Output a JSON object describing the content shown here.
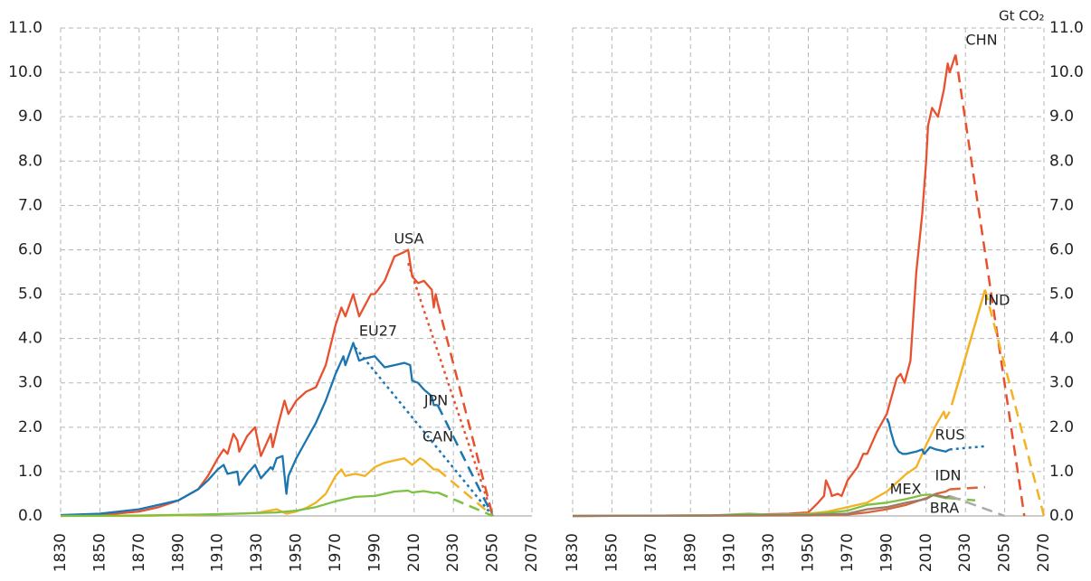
{
  "chart_data": [
    {
      "type": "line",
      "xlim": [
        1830,
        2070
      ],
      "xticks": [
        1830,
        1850,
        1870,
        1890,
        1910,
        1930,
        1950,
        1970,
        1990,
        2010,
        2030,
        2050,
        2070
      ],
      "ylim": [
        0,
        11
      ],
      "yticks": [
        {
          "value": 0,
          "label": "0.0"
        },
        {
          "value": 1,
          "label": "1.0"
        },
        {
          "value": 2,
          "label": "2.0"
        },
        {
          "value": 3,
          "label": "3.0"
        },
        {
          "value": 4,
          "label": "4.0"
        },
        {
          "value": 5,
          "label": "5.0"
        },
        {
          "value": 6,
          "label": "6.0"
        },
        {
          "value": 7,
          "label": "7.0"
        },
        {
          "value": 8,
          "label": "8.0"
        },
        {
          "value": 9,
          "label": "9.0"
        },
        {
          "value": 10,
          "label": "10.0"
        },
        {
          "value": 11,
          "label": "11.0"
        }
      ],
      "grid": true,
      "y_axis_side": "left",
      "series": [
        {
          "name": "USA",
          "color": "#e8512f",
          "x": [
            1830,
            1850,
            1870,
            1880,
            1890,
            1900,
            1905,
            1910,
            1913,
            1915,
            1918,
            1920,
            1921,
            1925,
            1929,
            1932,
            1937,
            1938,
            1941,
            1944,
            1946,
            1950,
            1955,
            1960,
            1965,
            1970,
            1973,
            1975,
            1979,
            1982,
            1985,
            1988,
            1990,
            1995,
            2000,
            2005,
            2007,
            2009,
            2012,
            2015,
            2019,
            2020,
            2021,
            2022
          ],
          "values": [
            0.0,
            0.02,
            0.1,
            0.2,
            0.35,
            0.6,
            0.9,
            1.3,
            1.5,
            1.4,
            1.85,
            1.7,
            1.45,
            1.8,
            2.0,
            1.35,
            1.85,
            1.55,
            2.1,
            2.6,
            2.3,
            2.6,
            2.8,
            2.9,
            3.4,
            4.3,
            4.7,
            4.5,
            5.0,
            4.5,
            4.75,
            5.0,
            5.0,
            5.3,
            5.85,
            5.95,
            6.0,
            5.4,
            5.25,
            5.3,
            5.1,
            4.7,
            5.0,
            4.8
          ],
          "projections": [
            {
              "style": "dashed",
              "color": "#e8512f",
              "x": [
                2022,
                2050
              ],
              "values": [
                4.8,
                0
              ]
            },
            {
              "style": "dotted",
              "color": "#e8512f",
              "x": [
                2007,
                2050
              ],
              "values": [
                5.7,
                0
              ]
            }
          ]
        },
        {
          "name": "EU27",
          "color": "#1a75b0",
          "x": [
            1830,
            1850,
            1870,
            1890,
            1900,
            1905,
            1910,
            1913,
            1915,
            1920,
            1921,
            1925,
            1929,
            1932,
            1937,
            1938,
            1940,
            1943,
            1945,
            1946,
            1950,
            1955,
            1960,
            1965,
            1970,
            1974,
            1975,
            1979,
            1982,
            1985,
            1990,
            1995,
            2000,
            2005,
            2008,
            2009,
            2012,
            2015,
            2019,
            2020,
            2022
          ],
          "values": [
            0.02,
            0.05,
            0.15,
            0.35,
            0.6,
            0.8,
            1.05,
            1.15,
            0.95,
            1.0,
            0.7,
            0.95,
            1.15,
            0.85,
            1.1,
            1.05,
            1.3,
            1.35,
            0.5,
            0.9,
            1.3,
            1.7,
            2.1,
            2.6,
            3.2,
            3.6,
            3.4,
            3.9,
            3.5,
            3.55,
            3.6,
            3.35,
            3.4,
            3.45,
            3.4,
            3.05,
            3.0,
            2.85,
            2.7,
            2.5,
            2.5
          ],
          "projections": [
            {
              "style": "dotted",
              "color": "#1a75b0",
              "x": [
                1980,
                2050
              ],
              "values": [
                3.8,
                0
              ]
            },
            {
              "style": "dashed",
              "color": "#1a75b0",
              "x": [
                2022,
                2050
              ],
              "values": [
                2.5,
                0
              ]
            }
          ]
        },
        {
          "name": "JPN",
          "color": "#f4b223",
          "x": [
            1830,
            1870,
            1900,
            1920,
            1930,
            1940,
            1945,
            1950,
            1955,
            1960,
            1965,
            1970,
            1973,
            1975,
            1980,
            1985,
            1990,
            1995,
            2000,
            2005,
            2009,
            2013,
            2015,
            2020,
            2022
          ],
          "values": [
            0,
            0,
            0.02,
            0.05,
            0.07,
            0.15,
            0.05,
            0.1,
            0.18,
            0.3,
            0.5,
            0.9,
            1.05,
            0.9,
            0.95,
            0.9,
            1.1,
            1.2,
            1.25,
            1.3,
            1.15,
            1.3,
            1.25,
            1.05,
            1.05
          ],
          "projections": [
            {
              "style": "dashed",
              "color": "#f4b223",
              "x": [
                2022,
                2050
              ],
              "values": [
                1.05,
                0
              ]
            }
          ]
        },
        {
          "name": "CAN",
          "color": "#7dc142",
          "x": [
            1830,
            1870,
            1900,
            1920,
            1940,
            1950,
            1960,
            1970,
            1980,
            1990,
            2000,
            2007,
            2009,
            2015,
            2020,
            2022
          ],
          "values": [
            0,
            0.01,
            0.03,
            0.05,
            0.08,
            0.12,
            0.2,
            0.33,
            0.43,
            0.45,
            0.55,
            0.57,
            0.53,
            0.56,
            0.52,
            0.53
          ],
          "projections": [
            {
              "style": "dashed",
              "color": "#7dc142",
              "x": [
                2022,
                2050
              ],
              "values": [
                0.53,
                0
              ]
            }
          ]
        }
      ]
    },
    {
      "type": "line",
      "unit": "Gt CO₂",
      "xlim": [
        1830,
        2070
      ],
      "xticks": [
        1830,
        1850,
        1870,
        1890,
        1910,
        1930,
        1950,
        1970,
        1990,
        2010,
        2030,
        2050,
        2070
      ],
      "ylim": [
        0,
        11
      ],
      "yticks": [
        {
          "value": 0,
          "label": "0.0"
        },
        {
          "value": 1,
          "label": "1.0"
        },
        {
          "value": 2,
          "label": "2.0"
        },
        {
          "value": 3,
          "label": "3.0"
        },
        {
          "value": 4,
          "label": "4.0"
        },
        {
          "value": 5,
          "label": "5.0"
        },
        {
          "value": 6,
          "label": "6.0"
        },
        {
          "value": 7,
          "label": "7.0"
        },
        {
          "value": 8,
          "label": "8.0"
        },
        {
          "value": 9,
          "label": "9.0"
        },
        {
          "value": 10,
          "label": "10.0"
        },
        {
          "value": 11,
          "label": "11.0"
        }
      ],
      "grid": true,
      "y_axis_side": "right",
      "series": [
        {
          "name": "CHN",
          "color": "#e8512f",
          "x": [
            1830,
            1900,
            1940,
            1950,
            1955,
            1958,
            1959,
            1961,
            1962,
            1965,
            1967,
            1970,
            1975,
            1978,
            1980,
            1985,
            1990,
            1995,
            1997,
            1999,
            2002,
            2005,
            2008,
            2010,
            2011,
            2013,
            2016,
            2019,
            2021,
            2022,
            2025
          ],
          "values": [
            0.0,
            0.01,
            0.05,
            0.08,
            0.3,
            0.45,
            0.8,
            0.6,
            0.45,
            0.5,
            0.45,
            0.8,
            1.1,
            1.4,
            1.4,
            1.9,
            2.3,
            3.1,
            3.2,
            3.0,
            3.5,
            5.5,
            6.8,
            8.0,
            8.8,
            9.2,
            9.0,
            9.6,
            10.2,
            10.0,
            10.4
          ],
          "projections": [
            {
              "style": "dashed",
              "color": "#e8512f",
              "x": [
                2025,
                2060
              ],
              "values": [
                10.4,
                0
              ]
            }
          ]
        },
        {
          "name": "IND",
          "color": "#f4b223",
          "x": [
            1830,
            1900,
            1940,
            1950,
            1960,
            1970,
            1980,
            1990,
            2000,
            2005,
            2010,
            2015,
            2019,
            2020,
            2022
          ],
          "values": [
            0,
            0.01,
            0.03,
            0.05,
            0.1,
            0.2,
            0.3,
            0.55,
            0.95,
            1.1,
            1.6,
            2.05,
            2.35,
            2.2,
            2.35
          ],
          "projections": [
            {
              "style": "solid",
              "color": "#f4b223",
              "x": [
                2023,
                2040
              ],
              "values": [
                2.5,
                5.1
              ]
            },
            {
              "style": "dashed",
              "color": "#f4b223",
              "x": [
                2040,
                2070
              ],
              "values": [
                5.1,
                0
              ]
            }
          ]
        },
        {
          "name": "RUS",
          "color": "#1a75b0",
          "x": [
            1990,
            1991,
            1992,
            1994,
            1996,
            1998,
            2000,
            2005,
            2008,
            2009,
            2012,
            2015,
            2020,
            2022
          ],
          "values": [
            2.2,
            2.1,
            1.9,
            1.6,
            1.45,
            1.4,
            1.4,
            1.45,
            1.5,
            1.4,
            1.55,
            1.5,
            1.45,
            1.5
          ],
          "projections": [
            {
              "style": "dotted",
              "color": "#1a75b0",
              "x": [
                2022,
                2040
              ],
              "values": [
                1.5,
                1.57
              ]
            }
          ]
        },
        {
          "name": "IDN",
          "color": "#d9663b",
          "x": [
            1830,
            1950,
            1970,
            1980,
            1990,
            2000,
            2010,
            2015,
            2020,
            2022
          ],
          "values": [
            0,
            0.01,
            0.03,
            0.08,
            0.15,
            0.25,
            0.4,
            0.5,
            0.55,
            0.6
          ],
          "projections": [
            {
              "style": "dashed",
              "color": "#d9663b",
              "x": [
                2022,
                2040
              ],
              "values": [
                0.6,
                0.65
              ]
            }
          ]
        },
        {
          "name": "MEX",
          "color": "#7dc142",
          "x": [
            1830,
            1900,
            1910,
            1920,
            1930,
            1950,
            1960,
            1970,
            1980,
            1990,
            2000,
            2008,
            2012,
            2020,
            2022
          ],
          "values": [
            0,
            0.01,
            0.03,
            0.05,
            0.03,
            0.04,
            0.07,
            0.12,
            0.25,
            0.3,
            0.38,
            0.47,
            0.48,
            0.4,
            0.4
          ],
          "projections": [
            {
              "style": "dashed",
              "color": "#7dc142",
              "x": [
                2022,
                2035
              ],
              "values": [
                0.4,
                0.35
              ]
            }
          ]
        },
        {
          "name": "BRA",
          "color": "#9b7b6a",
          "x": [
            1830,
            1950,
            1970,
            1980,
            1990,
            2000,
            2010,
            2014,
            2020,
            2022
          ],
          "values": [
            0,
            0.02,
            0.05,
            0.15,
            0.2,
            0.3,
            0.38,
            0.48,
            0.42,
            0.45
          ],
          "projections": [
            {
              "style": "dashed",
              "color": "#aaaaaa",
              "x": [
                2022,
                2050
              ],
              "values": [
                0.45,
                0
              ]
            }
          ]
        }
      ]
    }
  ]
}
